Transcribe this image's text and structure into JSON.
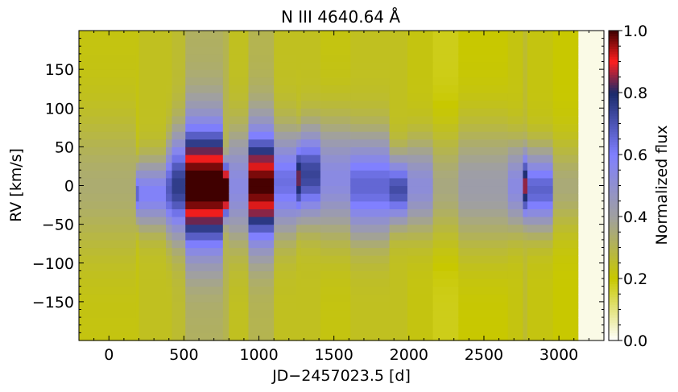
{
  "chart_data": {
    "type": "heatmap",
    "title": "N III 4640.64 Å",
    "xlabel": "JD−2457023.5 [d]",
    "ylabel": "RV [km/s]",
    "colorbar_label": "Normalized flux",
    "xlim": [
      -200,
      3300
    ],
    "ylim": [
      -200,
      200
    ],
    "zlim": [
      0.0,
      1.0
    ],
    "x_ticks": [
      0,
      500,
      1000,
      1500,
      2000,
      2500,
      3000
    ],
    "x_tick_labels": [
      "0",
      "500",
      "1000",
      "1500",
      "2000",
      "2500",
      "3000"
    ],
    "y_ticks": [
      -150,
      -100,
      -50,
      0,
      50,
      100,
      150
    ],
    "y_tick_labels": [
      "−150",
      "−100",
      "−50",
      "0",
      "50",
      "100",
      "150"
    ],
    "colorbar_ticks": [
      0.0,
      0.2,
      0.4,
      0.6,
      0.8,
      1.0
    ],
    "colorbar_tick_labels": [
      "0.0",
      "0.2",
      "0.4",
      "0.6",
      "0.8",
      "1.0"
    ],
    "colormap": [
      {
        "v": 0.0,
        "color": "#ffffff"
      },
      {
        "v": 0.2,
        "color": "#c8c800"
      },
      {
        "v": 0.4,
        "color": "#a0a0a0"
      },
      {
        "v": 0.6,
        "color": "#8080ff"
      },
      {
        "v": 0.8,
        "color": "#1a2a6a"
      },
      {
        "v": 0.9,
        "color": "#ff2020"
      },
      {
        "v": 1.0,
        "color": "#400000"
      }
    ],
    "rv_grid": {
      "start": -195,
      "stop": 195,
      "step": 10
    },
    "epochs": [
      {
        "x0": -200,
        "x1": 180,
        "amp": 0.12,
        "w": 60,
        "c": 0,
        "base": 0.22
      },
      {
        "x0": 180,
        "x1": 200,
        "amp": 0.45,
        "w": 25,
        "c": -10,
        "base": 0.22
      },
      {
        "x0": 200,
        "x1": 380,
        "amp": 0.35,
        "w": 30,
        "c": -10,
        "base": 0.24
      },
      {
        "x0": 380,
        "x1": 420,
        "amp": 0.45,
        "w": 40,
        "c": -5,
        "base": 0.24
      },
      {
        "x0": 420,
        "x1": 510,
        "amp": 0.5,
        "w": 45,
        "c": 0,
        "base": 0.26
      },
      {
        "x0": 510,
        "x1": 760,
        "amp": 0.72,
        "w": 55,
        "c": 0,
        "base": 0.32
      },
      {
        "x0": 760,
        "x1": 800,
        "amp": 0.88,
        "w": 22,
        "c": -5,
        "base": 0.3
      },
      {
        "x0": 800,
        "x1": 930,
        "amp": 0.3,
        "w": 50,
        "c": 0,
        "base": 0.24
      },
      {
        "x0": 930,
        "x1": 1100,
        "amp": 0.7,
        "w": 50,
        "c": 0,
        "base": 0.3
      },
      {
        "x0": 1100,
        "x1": 1250,
        "amp": 0.4,
        "w": 45,
        "c": 5,
        "base": 0.24
      },
      {
        "x0": 1250,
        "x1": 1280,
        "amp": 0.6,
        "w": 35,
        "c": 10,
        "base": 0.24
      },
      {
        "x0": 1280,
        "x1": 1410,
        "amp": 0.5,
        "w": 40,
        "c": 15,
        "base": 0.24
      },
      {
        "x0": 1410,
        "x1": 1610,
        "amp": 0.32,
        "w": 50,
        "c": 10,
        "base": 0.22
      },
      {
        "x0": 1610,
        "x1": 1870,
        "amp": 0.42,
        "w": 45,
        "c": 0,
        "base": 0.24
      },
      {
        "x0": 1870,
        "x1": 1990,
        "amp": 0.48,
        "w": 30,
        "c": -5,
        "base": 0.24
      },
      {
        "x0": 1990,
        "x1": 2160,
        "amp": 0.3,
        "w": 40,
        "c": 0,
        "base": 0.22
      },
      {
        "x0": 2160,
        "x1": 2330,
        "amp": 0.18,
        "w": 50,
        "c": 0,
        "base": 0.18
      },
      {
        "x0": 2330,
        "x1": 2660,
        "amp": 0.22,
        "w": 55,
        "c": 0,
        "base": 0.2
      },
      {
        "x0": 2660,
        "x1": 2760,
        "amp": 0.32,
        "w": 40,
        "c": 0,
        "base": 0.22
      },
      {
        "x0": 2760,
        "x1": 2790,
        "amp": 0.6,
        "w": 30,
        "c": 0,
        "base": 0.26
      },
      {
        "x0": 2790,
        "x1": 2960,
        "amp": 0.45,
        "w": 35,
        "c": -5,
        "base": 0.22
      },
      {
        "x0": 2960,
        "x1": 3130,
        "amp": 0.15,
        "w": 40,
        "c": 0,
        "base": 0.2
      },
      {
        "x0": 3130,
        "x1": 3300,
        "amp": 0.0,
        "w": 40,
        "c": 0,
        "base": 0.02
      }
    ]
  }
}
